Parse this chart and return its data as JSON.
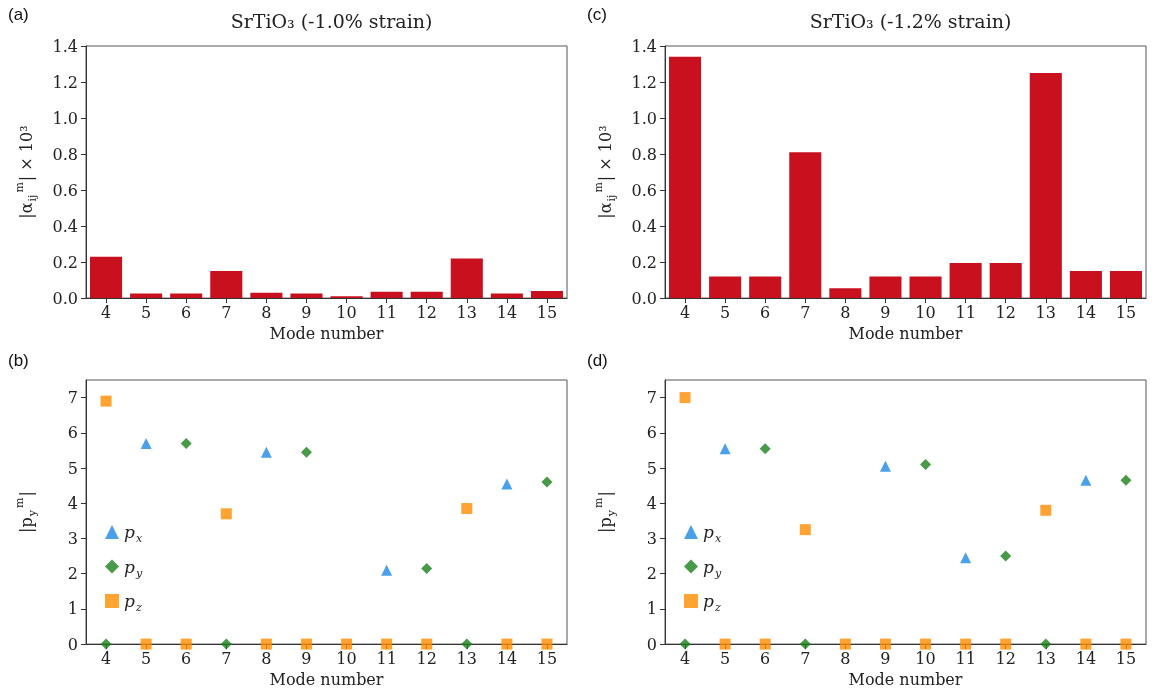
{
  "chart_data": [
    {
      "type": "bar",
      "title": "SrTiO₃ (-1.0% strain)",
      "xlabel": "Mode number",
      "ylabel": "|α$_{ij}$$^{m}$| × 10³",
      "annotations": [
        "(a)"
      ],
      "categories": [
        "4",
        "5",
        "6",
        "7",
        "8",
        "9",
        "10",
        "11",
        "12",
        "13",
        "14",
        "15"
      ],
      "values": [
        0.23,
        0.025,
        0.025,
        0.15,
        0.03,
        0.025,
        0.01,
        0.035,
        0.035,
        0.22,
        0.025,
        0.04
      ],
      "color": "#c8101e",
      "ylim": [
        0,
        1.4
      ],
      "yticks": [
        {
          "value": 0,
          "label": "0.0"
        },
        {
          "value": 0.2,
          "label": "0.2"
        },
        {
          "value": 0.4,
          "label": "0.4"
        },
        {
          "value": 0.6,
          "label": "0.6"
        },
        {
          "value": 0.8,
          "label": "0.8"
        },
        {
          "value": 1,
          "label": "1.0"
        },
        {
          "value": 1.2,
          "label": "1.2"
        },
        {
          "value": 1.4,
          "label": "1.4"
        }
      ]
    },
    {
      "type": "bar",
      "title": "SrTiO₃ (-1.2% strain)",
      "xlabel": "Mode number",
      "ylabel": "|α$_{ij}$$^{m}$| × 10³",
      "annotations": [
        "(c)"
      ],
      "categories": [
        "4",
        "5",
        "6",
        "7",
        "8",
        "9",
        "10",
        "11",
        "12",
        "13",
        "14",
        "15"
      ],
      "values": [
        1.34,
        0.12,
        0.12,
        0.81,
        0.055,
        0.12,
        0.12,
        0.195,
        0.195,
        1.25,
        0.15,
        0.15
      ],
      "color": "#c8101e",
      "ylim": [
        0,
        1.4
      ],
      "yticks": [
        {
          "value": 0,
          "label": "0.0"
        },
        {
          "value": 0.2,
          "label": "0.2"
        },
        {
          "value": 0.4,
          "label": "0.4"
        },
        {
          "value": 0.6,
          "label": "0.6"
        },
        {
          "value": 0.8,
          "label": "0.8"
        },
        {
          "value": 1,
          "label": "1.0"
        },
        {
          "value": 1.2,
          "label": "1.2"
        },
        {
          "value": 1.4,
          "label": "1.4"
        }
      ]
    },
    {
      "type": "scatter",
      "xlabel": "Mode number",
      "ylabel": "|p$_{y}$$^{m}$|",
      "annotations": [
        "(b)"
      ],
      "legend": "bottom left",
      "categories": [
        "4",
        "5",
        "6",
        "7",
        "8",
        "9",
        "10",
        "11",
        "12",
        "13",
        "14",
        "15"
      ],
      "series": [
        {
          "name": "p$_{x}$",
          "color": "#1e88e5",
          "marker": "triangle",
          "values": [
            null,
            5.7,
            null,
            null,
            5.45,
            null,
            null,
            2.1,
            null,
            null,
            4.55,
            null
          ]
        },
        {
          "name": "p$_{y}$",
          "color": "#1a7f1a",
          "marker": "diamond",
          "values": [
            0,
            null,
            5.7,
            0,
            null,
            5.45,
            null,
            null,
            2.15,
            0,
            null,
            4.6
          ]
        },
        {
          "name": "p$_{z}$",
          "color": "#ff8c00",
          "marker": "square",
          "values": [
            6.9,
            0,
            0,
            3.7,
            0,
            0,
            0,
            0,
            0,
            3.85,
            0,
            0
          ]
        }
      ],
      "ylim": [
        0,
        7.5
      ],
      "yticks": [
        0,
        1,
        2,
        3,
        4,
        5,
        6,
        7
      ]
    },
    {
      "type": "scatter",
      "xlabel": "Mode number",
      "ylabel": "|p$_{y}$$^{m}$|",
      "annotations": [
        "(d)"
      ],
      "legend": "bottom left",
      "categories": [
        "4",
        "5",
        "6",
        "7",
        "8",
        "9",
        "10",
        "11",
        "12",
        "13",
        "14",
        "15"
      ],
      "series": [
        {
          "name": "p$_{x}$",
          "color": "#1e88e5",
          "marker": "triangle",
          "values": [
            null,
            5.55,
            null,
            null,
            null,
            5.05,
            null,
            2.45,
            null,
            null,
            4.65,
            null
          ]
        },
        {
          "name": "p$_{y}$",
          "color": "#1a7f1a",
          "marker": "diamond",
          "values": [
            0,
            null,
            5.55,
            0,
            null,
            null,
            5.1,
            null,
            2.5,
            0,
            null,
            4.65
          ]
        },
        {
          "name": "p$_{z}$",
          "color": "#ff8c00",
          "marker": "square",
          "values": [
            7.0,
            0,
            0,
            3.25,
            0,
            0,
            0,
            0,
            0,
            3.8,
            0,
            0
          ]
        }
      ],
      "ylim": [
        0,
        7.5
      ],
      "yticks": [
        0,
        1,
        2,
        3,
        4,
        5,
        6,
        7
      ]
    }
  ]
}
